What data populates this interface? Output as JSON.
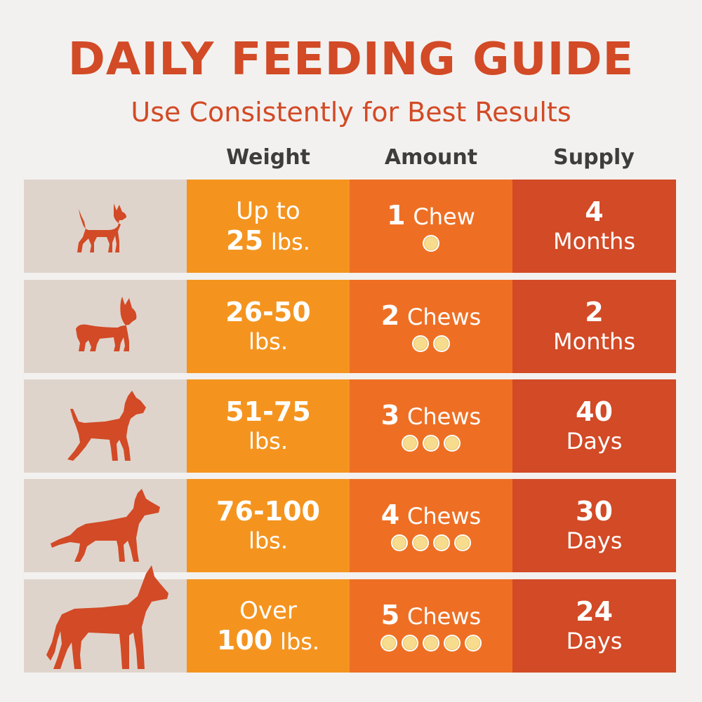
{
  "title": "DAILY FEEDING GUIDE",
  "subtitle": "Use Consistently for Best Results",
  "headers": {
    "weight": "Weight",
    "amount": "Amount",
    "supply": "Supply"
  },
  "rows": [
    {
      "dog_icon": "chihuahua-icon",
      "weight_line1": "Up to",
      "weight_num": "25",
      "weight_unit": "lbs.",
      "amount_num": "1",
      "amount_unit": "Chew",
      "chew_count": 1,
      "supply_num": "4",
      "supply_unit": "Months"
    },
    {
      "dog_icon": "french-bulldog-icon",
      "weight_num": "26-50",
      "weight_unit": "lbs.",
      "amount_num": "2",
      "amount_unit": "Chews",
      "chew_count": 2,
      "supply_num": "2",
      "supply_unit": "Months"
    },
    {
      "dog_icon": "pit-bull-icon",
      "weight_num": "51-75",
      "weight_unit": "lbs.",
      "amount_num": "3",
      "amount_unit": "Chews",
      "chew_count": 3,
      "supply_num": "40",
      "supply_unit": "Days"
    },
    {
      "dog_icon": "german-shepherd-icon",
      "weight_num": "76-100",
      "weight_unit": "lbs.",
      "amount_num": "4",
      "amount_unit": "Chews",
      "chew_count": 4,
      "supply_num": "30",
      "supply_unit": "Days"
    },
    {
      "dog_icon": "great-dane-icon",
      "weight_line1": "Over",
      "weight_num": "100",
      "weight_unit": "lbs.",
      "amount_num": "5",
      "amount_unit": "Chews",
      "chew_count": 5,
      "supply_num": "24",
      "supply_unit": "Days"
    }
  ],
  "colors": {
    "title": "#d24a26",
    "weight_col": "#f4941f",
    "amount_col": "#ee6f24",
    "supply_col": "#d24a26",
    "dog_col": "#dfd4cc",
    "chew": "#f8dc8e"
  }
}
